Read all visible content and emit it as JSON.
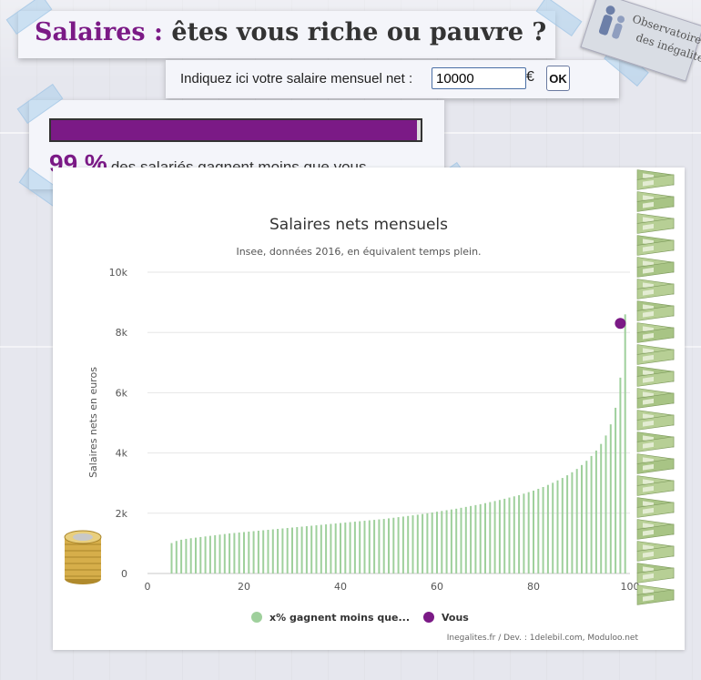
{
  "header": {
    "title_accent": "Salaires :",
    "title_rest": "êtes vous riche ou pauvre ?"
  },
  "form": {
    "label": "Indiquez ici votre salaire mensuel net :",
    "salary_value": "10000",
    "currency": "€",
    "ok_label": "OK"
  },
  "result": {
    "percent_label": "99 %",
    "percent_value": 99,
    "text": "des salariés gagnent moins que vous."
  },
  "logo": {
    "line1": "Observatoire",
    "line2": "des inégalités"
  },
  "colors": {
    "accent": "#7b1a86",
    "bars": "#9fd09c",
    "grid": "#e6e6e6"
  },
  "chart_data": {
    "type": "bar",
    "title": "Salaires nets mensuels",
    "subtitle": "Insee, données 2016, en équivalent temps plein.",
    "ylabel": "Salaires nets en euros",
    "xlabel": "",
    "xlim": [
      0,
      100
    ],
    "ylim": [
      0,
      10000
    ],
    "x_ticks": [
      0,
      20,
      40,
      60,
      80,
      100
    ],
    "y_ticks": [
      0,
      2000,
      4000,
      6000,
      8000,
      10000
    ],
    "y_tick_labels": [
      "0",
      "2k",
      "4k",
      "6k",
      "8k",
      "10k"
    ],
    "grid": true,
    "legend_position": "bottom",
    "credits": "Inegalites.fr / Dev. : 1delebil.com, Moduloo.net",
    "series": [
      {
        "name": "x% gagnent moins que...",
        "type": "bar",
        "color": "#9fd09c",
        "x": [
          5,
          6,
          7,
          8,
          9,
          10,
          11,
          12,
          13,
          14,
          15,
          16,
          17,
          18,
          19,
          20,
          21,
          22,
          23,
          24,
          25,
          26,
          27,
          28,
          29,
          30,
          31,
          32,
          33,
          34,
          35,
          36,
          37,
          38,
          39,
          40,
          41,
          42,
          43,
          44,
          45,
          46,
          47,
          48,
          49,
          50,
          51,
          52,
          53,
          54,
          55,
          56,
          57,
          58,
          59,
          60,
          61,
          62,
          63,
          64,
          65,
          66,
          67,
          68,
          69,
          70,
          71,
          72,
          73,
          74,
          75,
          76,
          77,
          78,
          79,
          80,
          81,
          82,
          83,
          84,
          85,
          86,
          87,
          88,
          89,
          90,
          91,
          92,
          93,
          94,
          95,
          96,
          97,
          98,
          99
        ],
        "values": [
          1010,
          1080,
          1120,
          1150,
          1170,
          1190,
          1210,
          1230,
          1250,
          1270,
          1290,
          1310,
          1330,
          1345,
          1360,
          1375,
          1390,
          1405,
          1420,
          1435,
          1450,
          1465,
          1480,
          1495,
          1510,
          1525,
          1540,
          1555,
          1570,
          1585,
          1600,
          1615,
          1630,
          1645,
          1660,
          1675,
          1690,
          1705,
          1720,
          1735,
          1750,
          1765,
          1780,
          1795,
          1810,
          1830,
          1850,
          1870,
          1890,
          1910,
          1930,
          1950,
          1975,
          2000,
          2025,
          2050,
          2075,
          2100,
          2125,
          2150,
          2180,
          2210,
          2240,
          2270,
          2300,
          2335,
          2370,
          2405,
          2440,
          2480,
          2520,
          2560,
          2600,
          2650,
          2700,
          2750,
          2810,
          2870,
          2940,
          3010,
          3090,
          3170,
          3260,
          3360,
          3470,
          3600,
          3740,
          3900,
          4080,
          4300,
          4580,
          4950,
          5500,
          6500,
          8600
        ]
      },
      {
        "name": "Vous",
        "type": "scatter",
        "color": "#7b1a86",
        "x": [
          98
        ],
        "values": [
          8300
        ]
      }
    ]
  }
}
